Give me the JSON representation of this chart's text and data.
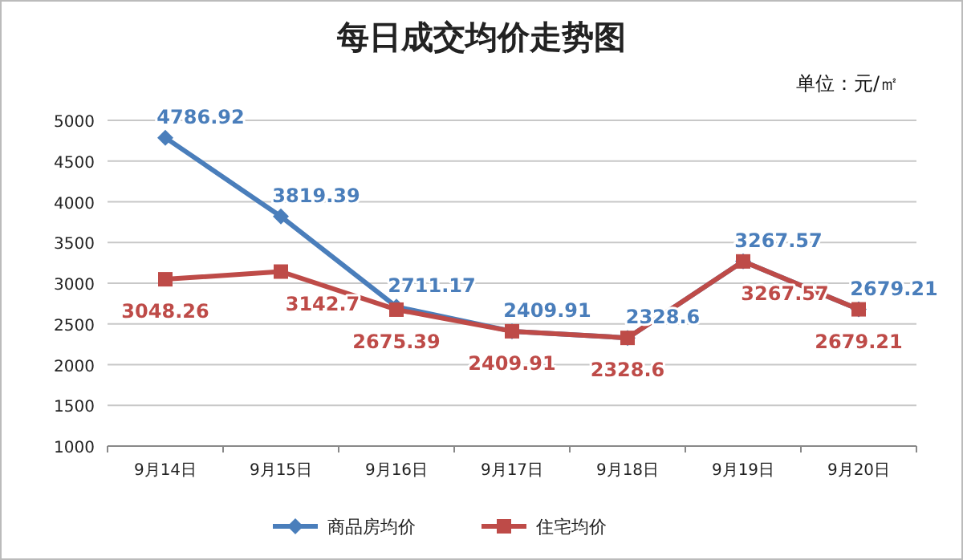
{
  "chart_data": {
    "type": "line",
    "title": "每日成交均价走势图",
    "annotations": [
      "单位：元/㎡"
    ],
    "categories": [
      "9月14日",
      "9月15日",
      "9月16日",
      "9月17日",
      "9月18日",
      "9月19日",
      "9月20日"
    ],
    "series": [
      {
        "name": "商品房均价",
        "color": "#4a7ebb",
        "marker": "diamond",
        "values": [
          4786.92,
          3819.39,
          2711.17,
          2409.91,
          2328.6,
          3267.57,
          2679.21
        ]
      },
      {
        "name": "住宅均价",
        "color": "#be4b48",
        "marker": "square",
        "values": [
          3048.26,
          3142.7,
          2675.39,
          2409.91,
          2328.6,
          3267.57,
          2679.21
        ]
      }
    ],
    "ylim": [
      1000,
      5000
    ],
    "yticks": [
      1000,
      1500,
      2000,
      2500,
      3000,
      3500,
      4000,
      4500,
      5000
    ],
    "grid": "y",
    "data_labels": true,
    "legend": "bottom"
  }
}
